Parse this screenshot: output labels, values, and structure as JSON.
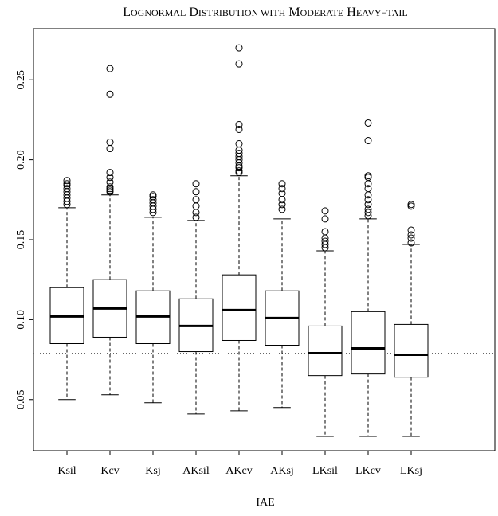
{
  "chart_data": {
    "type": "boxplot",
    "title": "Lognormal Distribution with Moderate Heavy-tail",
    "title_smallcaps": [
      {
        "cap": "L",
        "rest": "ognormal"
      },
      {
        "cap": "D",
        "rest": "istribution"
      },
      {
        "cap": "",
        "rest": "with"
      },
      {
        "cap": "M",
        "rest": "oderate"
      },
      {
        "cap": "H",
        "rest": "eavy−tail"
      }
    ],
    "xlabel": "IAE",
    "ylabel": "",
    "ylim": [
      0.02,
      0.28
    ],
    "yticks": [
      0.05,
      0.1,
      0.15,
      0.2,
      0.25
    ],
    "ytick_labels": [
      "0.05",
      "0.10",
      "0.15",
      "0.20",
      "0.25"
    ],
    "reference_line": 0.079,
    "categories": [
      "Ksil",
      "Kcv",
      "Ksj",
      "AKsil",
      "AKcv",
      "AKsj",
      "LKsil",
      "LKcv",
      "LKsj"
    ],
    "boxes": [
      {
        "name": "Ksil",
        "whisker_low": 0.05,
        "q1": 0.085,
        "median": 0.102,
        "q3": 0.12,
        "whisker_high": 0.17,
        "outliers": [
          0.172,
          0.174,
          0.176,
          0.178,
          0.18,
          0.182,
          0.184,
          0.185,
          0.187
        ]
      },
      {
        "name": "Kcv",
        "whisker_low": 0.053,
        "q1": 0.089,
        "median": 0.107,
        "q3": 0.125,
        "whisker_high": 0.178,
        "outliers": [
          0.18,
          0.181,
          0.182,
          0.183,
          0.186,
          0.189,
          0.192,
          0.207,
          0.211,
          0.241,
          0.257
        ]
      },
      {
        "name": "Ksj",
        "whisker_low": 0.048,
        "q1": 0.085,
        "median": 0.102,
        "q3": 0.118,
        "whisker_high": 0.164,
        "outliers": [
          0.167,
          0.169,
          0.171,
          0.173,
          0.175,
          0.177,
          0.178
        ]
      },
      {
        "name": "AKsil",
        "whisker_low": 0.041,
        "q1": 0.08,
        "median": 0.096,
        "q3": 0.113,
        "whisker_high": 0.162,
        "outliers": [
          0.164,
          0.167,
          0.171,
          0.175,
          0.18,
          0.185
        ]
      },
      {
        "name": "AKcv",
        "whisker_low": 0.043,
        "q1": 0.087,
        "median": 0.106,
        "q3": 0.128,
        "whisker_high": 0.19,
        "outliers": [
          0.192,
          0.193,
          0.195,
          0.196,
          0.198,
          0.2,
          0.202,
          0.204,
          0.206,
          0.21,
          0.219,
          0.222,
          0.26,
          0.27
        ]
      },
      {
        "name": "AKsj",
        "whisker_low": 0.045,
        "q1": 0.084,
        "median": 0.101,
        "q3": 0.118,
        "whisker_high": 0.163,
        "outliers": [
          0.169,
          0.172,
          0.175,
          0.179,
          0.182,
          0.185
        ]
      },
      {
        "name": "LKsil",
        "whisker_low": 0.027,
        "q1": 0.065,
        "median": 0.079,
        "q3": 0.096,
        "whisker_high": 0.143,
        "outliers": [
          0.145,
          0.147,
          0.149,
          0.151,
          0.155,
          0.163,
          0.168
        ]
      },
      {
        "name": "LKcv",
        "whisker_low": 0.027,
        "q1": 0.066,
        "median": 0.082,
        "q3": 0.105,
        "whisker_high": 0.163,
        "outliers": [
          0.165,
          0.167,
          0.169,
          0.172,
          0.175,
          0.178,
          0.182,
          0.185,
          0.189,
          0.19,
          0.212,
          0.223
        ]
      },
      {
        "name": "LKsj",
        "whisker_low": 0.027,
        "q1": 0.064,
        "median": 0.078,
        "q3": 0.097,
        "whisker_high": 0.147,
        "outliers": [
          0.148,
          0.151,
          0.153,
          0.156,
          0.171,
          0.172
        ]
      }
    ]
  }
}
